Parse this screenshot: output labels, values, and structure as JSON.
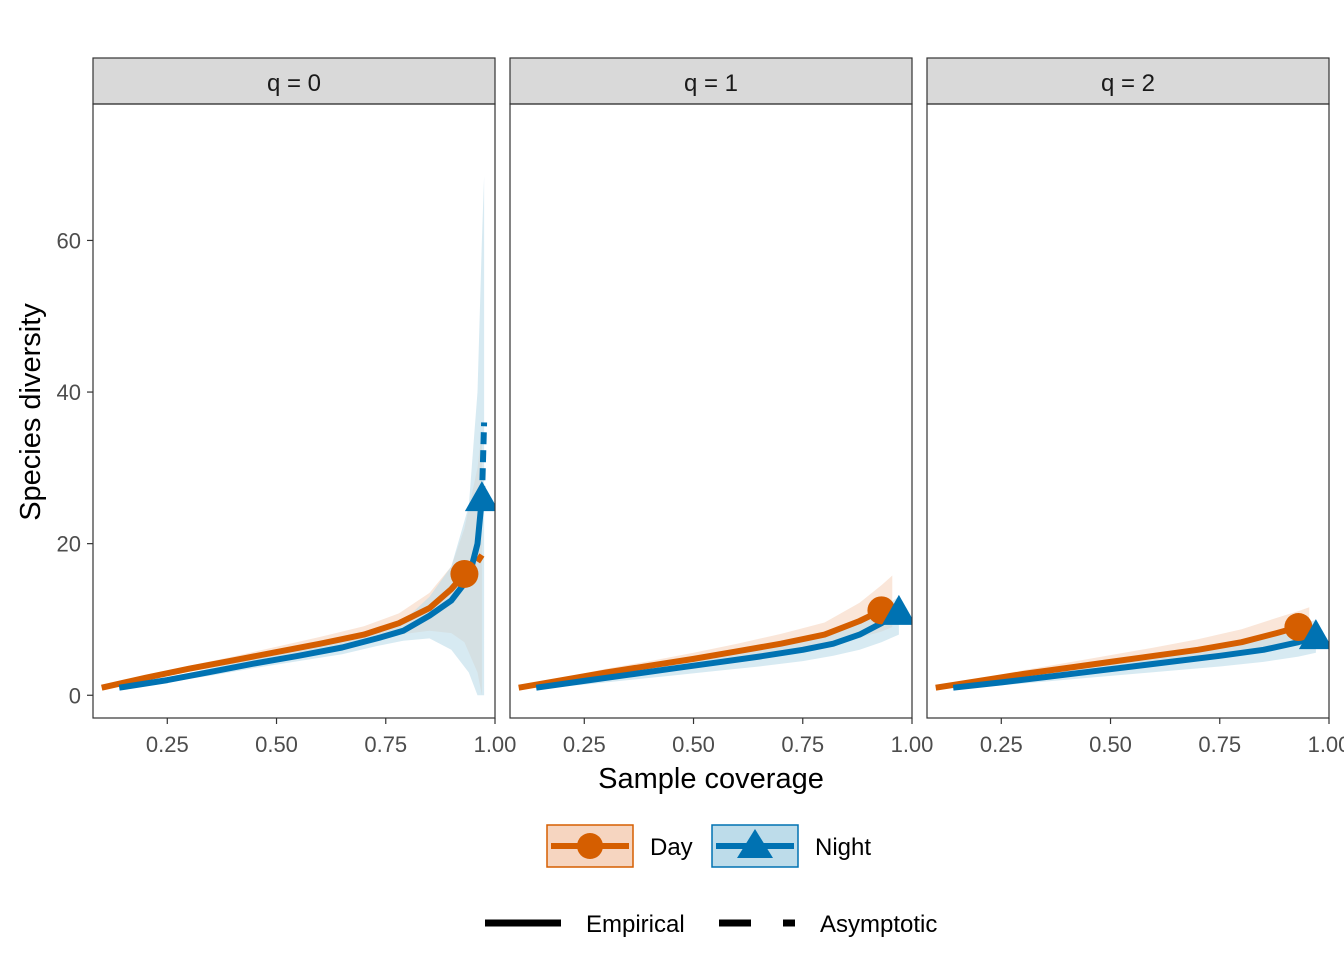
{
  "chart_data": {
    "type": "line",
    "xlabel": "Sample coverage",
    "ylabel": "Species diversity",
    "xlim": [
      0.08,
      1.0
    ],
    "ylim": [
      -3,
      78
    ],
    "x_ticks": [
      "0.25",
      "0.50",
      "0.75",
      "1.00"
    ],
    "y_ticks": [
      "0",
      "20",
      "40",
      "60"
    ],
    "grid": false,
    "legend_position": "bottom",
    "colors": {
      "Day": "#D55E00",
      "Night": "#0072B2",
      "Day_band": "#F6D5C0",
      "Night_band": "#BDDCEA",
      "strip_bg": "#D9D9D9"
    },
    "series_legend": [
      {
        "name": "Day",
        "marker": "circle"
      },
      {
        "name": "Night",
        "marker": "triangle"
      }
    ],
    "linetype_legend": [
      {
        "name": "Empirical",
        "style": "solid"
      },
      {
        "name": "Asymptotic",
        "style": "dashed"
      }
    ],
    "panels": [
      {
        "label": "q = 0",
        "series": [
          {
            "name": "Day",
            "x": [
              0.1,
              0.2,
              0.3,
              0.4,
              0.5,
              0.6,
              0.7,
              0.78,
              0.85,
              0.9,
              0.93,
              0.96,
              0.97
            ],
            "y": [
              1,
              2.3,
              3.5,
              4.6,
              5.7,
              6.8,
              8.0,
              9.5,
              11.5,
              14.0,
              16.0,
              17.6,
              18.5
            ],
            "lower": [
              1,
              2.0,
              3.1,
              4.1,
              5.0,
              6.0,
              7.0,
              8.0,
              8.5,
              8.2,
              7.0,
              3.0,
              0
            ],
            "upper": [
              1,
              2.6,
              3.9,
              5.1,
              6.4,
              7.7,
              9.1,
              10.8,
              13.5,
              17.0,
              22.0,
              30.0,
              35.0
            ],
            "reference": {
              "x": 0.93,
              "y": 16
            }
          },
          {
            "name": "Night",
            "x": [
              0.14,
              0.25,
              0.35,
              0.45,
              0.55,
              0.65,
              0.73,
              0.79,
              0.85,
              0.9,
              0.94,
              0.96,
              0.97,
              0.975
            ],
            "y": [
              1,
              2.0,
              3.1,
              4.2,
              5.2,
              6.3,
              7.5,
              8.5,
              10.5,
              12.5,
              15.5,
              20.0,
              26.0,
              36.0
            ],
            "lower": [
              1,
              1.7,
              2.6,
              3.6,
              4.5,
              5.4,
              6.5,
              7.2,
              7.5,
              6.0,
              3.0,
              0,
              0,
              0
            ],
            "upper": [
              1,
              2.3,
              3.6,
              4.8,
              5.9,
              7.2,
              8.5,
              9.8,
              13.0,
              17.0,
              25.0,
              40.0,
              60.0,
              68.5
            ],
            "reference": {
              "x": 0.97,
              "y": 26
            }
          }
        ]
      },
      {
        "label": "q = 1",
        "series": [
          {
            "name": "Day",
            "x": [
              0.1,
              0.2,
              0.3,
              0.4,
              0.5,
              0.6,
              0.7,
              0.8,
              0.88,
              0.93,
              0.955
            ],
            "y": [
              1,
              2.0,
              3.0,
              3.9,
              4.8,
              5.8,
              6.8,
              8.0,
              9.8,
              11.2,
              12.0
            ],
            "lower": [
              1,
              1.7,
              2.5,
              3.3,
              4.0,
              4.8,
              5.6,
              6.5,
              7.6,
              8.4,
              9.0
            ],
            "upper": [
              1,
              2.3,
              3.5,
              4.5,
              5.6,
              6.8,
              8.1,
              9.6,
              12.2,
              14.5,
              15.8
            ],
            "reference": {
              "x": 0.93,
              "y": 11.2
            }
          },
          {
            "name": "Night",
            "x": [
              0.14,
              0.25,
              0.35,
              0.45,
              0.55,
              0.65,
              0.75,
              0.82,
              0.88,
              0.93,
              0.97
            ],
            "y": [
              1,
              1.9,
              2.7,
              3.5,
              4.3,
              5.1,
              6.0,
              6.8,
              8.0,
              9.5,
              11.0
            ],
            "lower": [
              0.8,
              1.4,
              2.0,
              2.6,
              3.2,
              3.8,
              4.5,
              5.2,
              6.0,
              7.0,
              8.0
            ],
            "upper": [
              1.2,
              2.4,
              3.4,
              4.4,
              5.4,
              6.4,
              7.5,
              8.5,
              10.0,
              11.5,
              13.0
            ],
            "reference": {
              "x": 0.97,
              "y": 11
            }
          }
        ]
      },
      {
        "label": "q = 2",
        "series": [
          {
            "name": "Day",
            "x": [
              0.1,
              0.2,
              0.3,
              0.4,
              0.5,
              0.6,
              0.7,
              0.8,
              0.88,
              0.93,
              0.955
            ],
            "y": [
              1,
              1.9,
              2.8,
              3.6,
              4.4,
              5.2,
              6.0,
              7.0,
              8.2,
              9.0,
              9.4
            ],
            "lower": [
              1,
              1.6,
              2.3,
              2.9,
              3.5,
              4.1,
              4.7,
              5.4,
              6.3,
              6.9,
              7.2
            ],
            "upper": [
              1,
              2.2,
              3.3,
              4.3,
              5.3,
              6.3,
              7.4,
              8.7,
              10.2,
              11.1,
              11.6
            ],
            "reference": {
              "x": 0.93,
              "y": 9
            }
          },
          {
            "name": "Night",
            "x": [
              0.14,
              0.25,
              0.35,
              0.45,
              0.55,
              0.65,
              0.75,
              0.85,
              0.93,
              0.97
            ],
            "y": [
              1,
              1.7,
              2.4,
              3.1,
              3.8,
              4.5,
              5.2,
              6.0,
              7.0,
              7.8
            ],
            "lower": [
              0.8,
              1.3,
              1.8,
              2.3,
              2.8,
              3.3,
              3.8,
              4.4,
              5.1,
              5.6
            ],
            "upper": [
              1.2,
              2.1,
              3.0,
              3.9,
              4.8,
              5.7,
              6.6,
              7.6,
              8.9,
              10.0
            ],
            "reference": {
              "x": 0.97,
              "y": 7.8
            }
          }
        ]
      }
    ]
  }
}
